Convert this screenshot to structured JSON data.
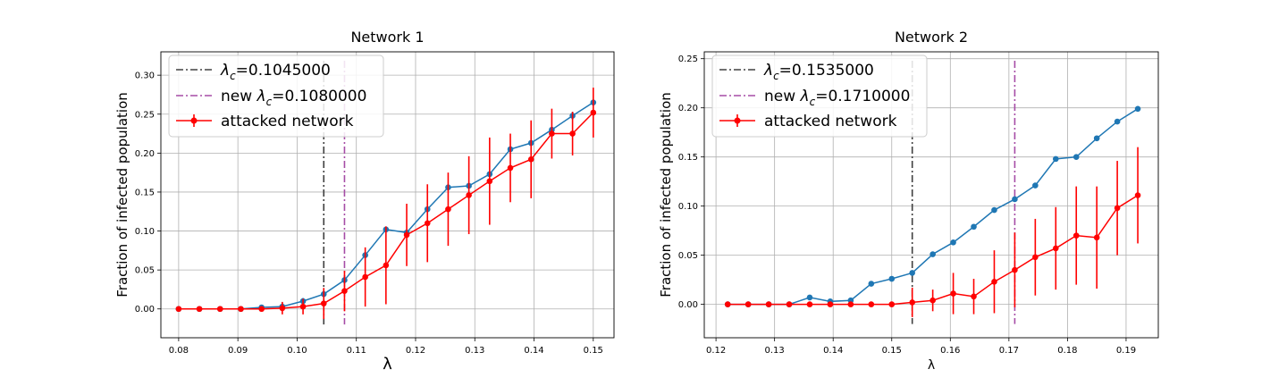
{
  "chart_data": [
    {
      "type": "line",
      "title": "Network 1",
      "xlabel": "λ",
      "ylabel": "Fraction of infected population",
      "xlim": [
        0.077,
        0.1535
      ],
      "ylim": [
        -0.037,
        0.33
      ],
      "xticks": [
        0.08,
        0.09,
        0.1,
        0.11,
        0.12,
        0.13,
        0.14,
        0.15
      ],
      "xtick_labels": [
        "0.08",
        "0.09",
        "0.10",
        "0.11",
        "0.12",
        "0.13",
        "0.14",
        "0.15"
      ],
      "yticks": [
        0.0,
        0.05,
        0.1,
        0.15,
        0.2,
        0.25,
        0.3
      ],
      "ytick_labels": [
        "0.00",
        "0.05",
        "0.10",
        "0.15",
        "0.20",
        "0.25",
        "0.30"
      ],
      "grid": true,
      "legend": "top-left",
      "critical_lines": [
        {
          "symbol": "λ",
          "sub": "c",
          "prefix": "",
          "suffix": "=0.1045000",
          "x": 0.1045,
          "color": "#404040"
        },
        {
          "symbol": "λ",
          "sub": "c",
          "prefix": "new ",
          "suffix": "=0.1080000",
          "x": 0.108,
          "color": "#a64ca6"
        }
      ],
      "series": [
        {
          "name": "",
          "color": "#1f77b4",
          "x": [
            0.08,
            0.0835,
            0.087,
            0.0905,
            0.094,
            0.0975,
            0.101,
            0.1045,
            0.108,
            0.1115,
            0.115,
            0.1185,
            0.122,
            0.1255,
            0.129,
            0.1325,
            0.136,
            0.1395,
            0.143,
            0.1465,
            0.15
          ],
          "y": [
            0.0,
            0.0,
            0.0,
            0.0,
            0.002,
            0.003,
            0.01,
            0.019,
            0.037,
            0.069,
            0.102,
            0.098,
            0.128,
            0.156,
            0.158,
            0.173,
            0.205,
            0.213,
            0.23,
            0.248,
            0.265
          ],
          "err": [
            0,
            0,
            0,
            0,
            0,
            0.005,
            0.004,
            0.003,
            0.006,
            0.003,
            0.003,
            0.003,
            0.003,
            0.003,
            0.003,
            0.003,
            0.003,
            0.003,
            0.003,
            0.005,
            0.004
          ]
        },
        {
          "name": "attacked network",
          "color": "#ff0000",
          "x": [
            0.08,
            0.0835,
            0.087,
            0.0905,
            0.094,
            0.0975,
            0.101,
            0.1045,
            0.108,
            0.1115,
            0.115,
            0.1185,
            0.122,
            0.1255,
            0.129,
            0.1325,
            0.136,
            0.1395,
            0.143,
            0.1465,
            0.15
          ],
          "y": [
            0.0,
            0.0,
            0.0,
            0.0,
            0.0,
            0.001,
            0.003,
            0.007,
            0.023,
            0.041,
            0.056,
            0.095,
            0.11,
            0.128,
            0.146,
            0.164,
            0.181,
            0.192,
            0.225,
            0.225,
            0.252
          ],
          "err": [
            0,
            0,
            0,
            0,
            0,
            0.008,
            0.01,
            0.02,
            0.026,
            0.038,
            0.05,
            0.04,
            0.05,
            0.047,
            0.05,
            0.056,
            0.044,
            0.05,
            0.032,
            0.028,
            0.032
          ]
        }
      ]
    },
    {
      "type": "line",
      "title": "Network 2",
      "xlabel": "λ",
      "ylabel": "Fraction of infected population",
      "xlim": [
        0.118,
        0.1955
      ],
      "ylim": [
        -0.034,
        0.257
      ],
      "xticks": [
        0.12,
        0.13,
        0.14,
        0.15,
        0.16,
        0.17,
        0.18,
        0.19
      ],
      "xtick_labels": [
        "0.12",
        "0.13",
        "0.14",
        "0.15",
        "0.16",
        "0.17",
        "0.18",
        "0.19"
      ],
      "yticks": [
        0.0,
        0.05,
        0.1,
        0.15,
        0.2,
        0.25
      ],
      "ytick_labels": [
        "0.00",
        "0.05",
        "0.10",
        "0.15",
        "0.20",
        "0.25"
      ],
      "grid": true,
      "legend": "top-left",
      "critical_lines": [
        {
          "symbol": "λ",
          "sub": "c",
          "prefix": "",
          "suffix": "=0.1535000",
          "x": 0.1535,
          "color": "#404040"
        },
        {
          "symbol": "λ",
          "sub": "c",
          "prefix": "new ",
          "suffix": "=0.1710000",
          "x": 0.171,
          "color": "#a64ca6"
        }
      ],
      "series": [
        {
          "name": "",
          "color": "#1f77b4",
          "x": [
            0.122,
            0.1255,
            0.129,
            0.1325,
            0.136,
            0.1395,
            0.143,
            0.1465,
            0.15,
            0.1535,
            0.157,
            0.1605,
            0.164,
            0.1675,
            0.171,
            0.1745,
            0.178,
            0.1815,
            0.185,
            0.1885,
            0.192
          ],
          "y": [
            0.0,
            0.0,
            0.0,
            0.0,
            0.007,
            0.003,
            0.004,
            0.021,
            0.026,
            0.032,
            0.051,
            0.063,
            0.079,
            0.096,
            0.107,
            0.121,
            0.148,
            0.15,
            0.169,
            0.186,
            0.199
          ],
          "err": [
            0,
            0,
            0,
            0,
            0,
            0,
            0,
            0,
            0,
            0,
            0,
            0,
            0,
            0,
            0,
            0,
            0,
            0,
            0,
            0,
            0
          ]
        },
        {
          "name": "attacked network",
          "color": "#ff0000",
          "x": [
            0.122,
            0.1255,
            0.129,
            0.1325,
            0.136,
            0.1395,
            0.143,
            0.1465,
            0.15,
            0.1535,
            0.157,
            0.1605,
            0.164,
            0.1675,
            0.171,
            0.1745,
            0.178,
            0.1815,
            0.185,
            0.1885,
            0.192
          ],
          "y": [
            0.0,
            0.0,
            0.0,
            0.0,
            0.0,
            0.0,
            0.0,
            0.0,
            0.0,
            0.002,
            0.004,
            0.011,
            0.008,
            0.023,
            0.035,
            0.048,
            0.057,
            0.07,
            0.068,
            0.098,
            0.111
          ],
          "err": [
            0,
            0,
            0,
            0,
            0,
            0,
            0,
            0,
            0,
            0.015,
            0.011,
            0.021,
            0.018,
            0.032,
            0.038,
            0.039,
            0.042,
            0.05,
            0.052,
            0.048,
            0.049
          ]
        }
      ]
    }
  ]
}
